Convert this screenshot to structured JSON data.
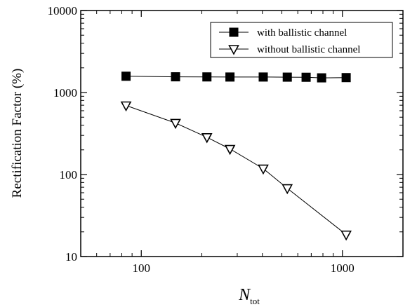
{
  "chart_data": {
    "type": "line",
    "xscale": "log",
    "yscale": "log",
    "xlim": [
      50,
      2000
    ],
    "ylim": [
      10,
      10000
    ],
    "xlabel_main": "N",
    "xlabel_sub": "tot",
    "ylabel": "Rectification Factor  (%)",
    "xticks": [
      100,
      1000
    ],
    "xtick_labels": [
      "100",
      "1000"
    ],
    "yticks": [
      10,
      100,
      1000,
      10000
    ],
    "ytick_labels": [
      "10",
      "100",
      "1000",
      "10000"
    ],
    "legend_position": "top-right",
    "grid": false,
    "series": [
      {
        "name": "with ballistic channel",
        "marker": "filled-square",
        "color": "#000000",
        "x": [
          84,
          148,
          212,
          276,
          404,
          532,
          660,
          788,
          1044
        ],
        "y": [
          1580,
          1555,
          1550,
          1545,
          1545,
          1540,
          1535,
          1510,
          1520
        ]
      },
      {
        "name": "without ballistic channel",
        "marker": "open-down-triangle",
        "color": "#000000",
        "x": [
          84,
          148,
          212,
          276,
          404,
          532,
          1044
        ],
        "y": [
          695,
          425,
          285,
          205,
          118,
          68,
          18.5
        ]
      }
    ]
  }
}
